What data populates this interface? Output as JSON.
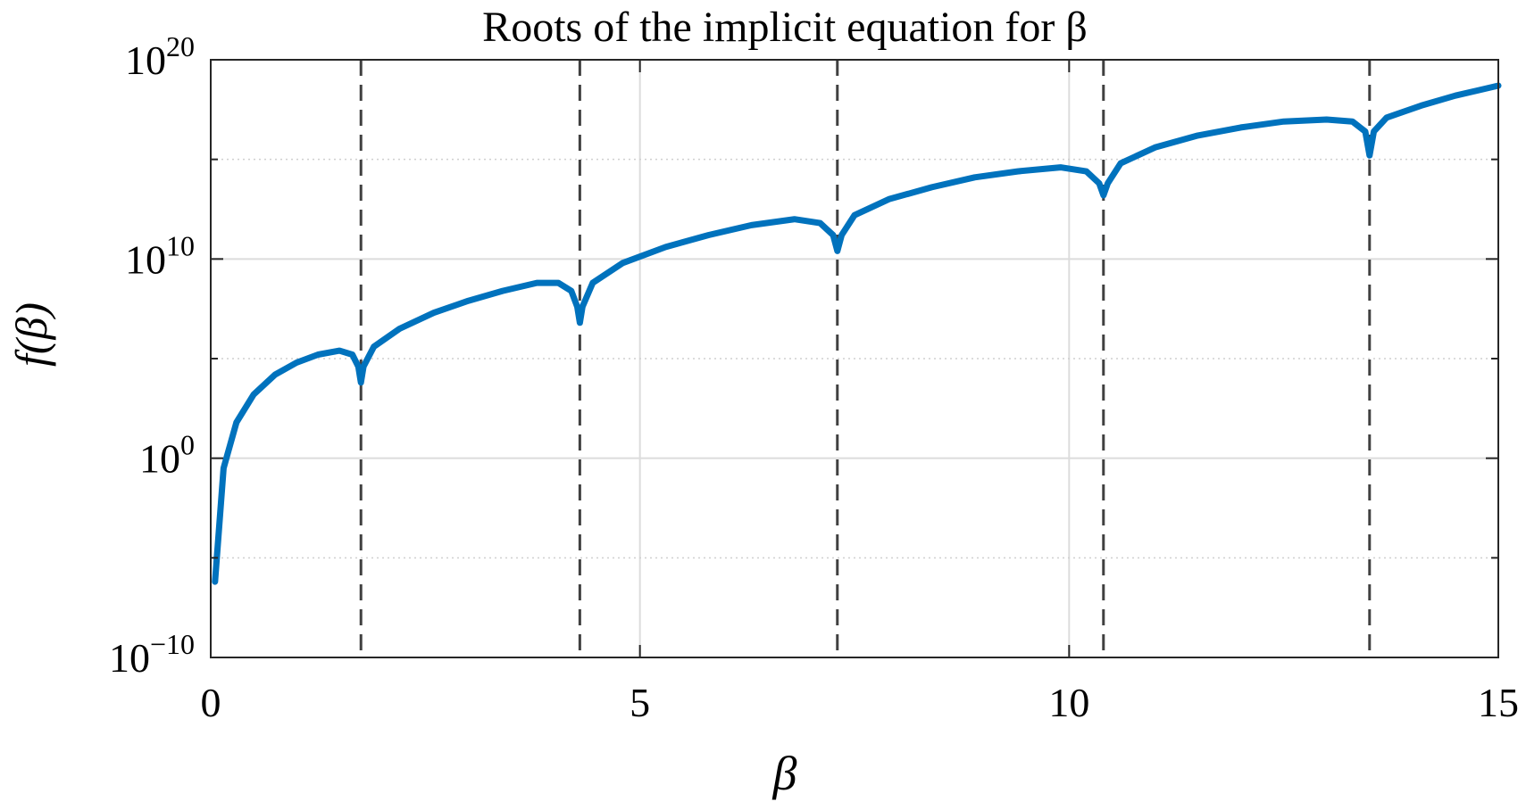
{
  "chart_data": {
    "type": "line",
    "title": "Roots of the implicit equation for β",
    "xlabel": "β",
    "ylabel": "f(β)",
    "xlim": [
      0,
      15
    ],
    "ylim_log10": [
      -10,
      20
    ],
    "yscale": "log",
    "grid": true,
    "x_ticks": [
      "0",
      "5",
      "10",
      "15"
    ],
    "y_ticks": [
      {
        "base": "10",
        "exp": "−10"
      },
      {
        "base": "10",
        "exp": "0"
      },
      {
        "base": "10",
        "exp": "10"
      },
      {
        "base": "10",
        "exp": "20"
      }
    ],
    "roots": [
      1.75,
      4.3,
      7.3,
      10.4,
      13.5
    ],
    "series": [
      {
        "color": "#0072BD",
        "x": [
          0.05,
          0.15,
          0.3,
          0.5,
          0.75,
          1.0,
          1.25,
          1.5,
          1.65,
          1.72,
          1.75,
          1.78,
          1.9,
          2.2,
          2.6,
          3.0,
          3.4,
          3.8,
          4.05,
          4.2,
          4.27,
          4.3,
          4.33,
          4.45,
          4.8,
          5.3,
          5.8,
          6.3,
          6.8,
          7.1,
          7.25,
          7.3,
          7.35,
          7.5,
          7.9,
          8.4,
          8.9,
          9.4,
          9.9,
          10.2,
          10.35,
          10.4,
          10.45,
          10.6,
          11.0,
          11.5,
          12.0,
          12.5,
          13.0,
          13.3,
          13.45,
          13.5,
          13.55,
          13.7,
          14.1,
          14.5,
          15.0
        ],
        "log10_y": [
          -6.2,
          -0.5,
          1.8,
          3.2,
          4.2,
          4.8,
          5.2,
          5.4,
          5.2,
          4.6,
          3.8,
          4.6,
          5.6,
          6.5,
          7.3,
          7.9,
          8.4,
          8.8,
          8.8,
          8.4,
          7.6,
          6.8,
          7.6,
          8.8,
          9.8,
          10.6,
          11.2,
          11.7,
          12.0,
          11.8,
          11.2,
          10.4,
          11.2,
          12.2,
          13.0,
          13.6,
          14.1,
          14.4,
          14.6,
          14.4,
          13.8,
          13.2,
          13.8,
          14.8,
          15.6,
          16.2,
          16.6,
          16.9,
          17.0,
          16.9,
          16.4,
          15.2,
          16.4,
          17.1,
          17.7,
          18.2,
          18.7
        ]
      }
    ]
  }
}
